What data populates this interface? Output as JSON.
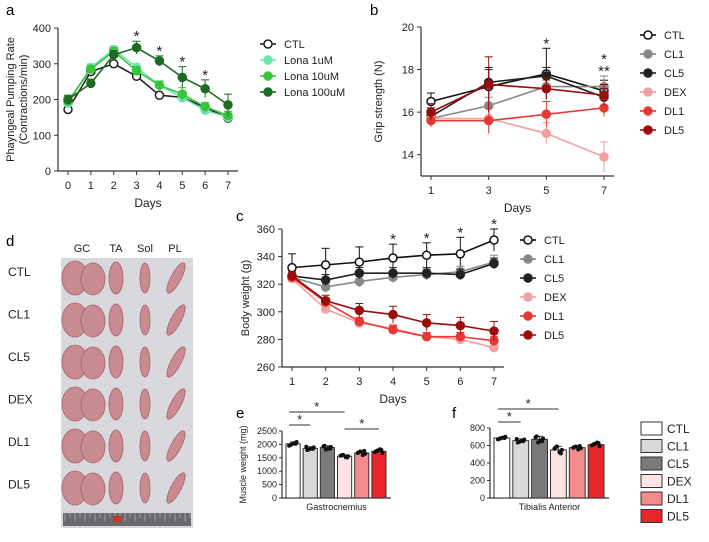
{
  "panel_labels": {
    "a": "a",
    "b": "b",
    "c": "c",
    "d": "d",
    "e": "e",
    "f": "f"
  },
  "colors": {
    "axis": "#333333",
    "photo_bg": "#d9d9dd",
    "muscle": "#c98b92",
    "muscle_dark": "#a8606c",
    "ruler": "#6a6a6e",
    "ruler_red": "#c0392b"
  },
  "chart_data": [
    {
      "id": "a",
      "type": "line",
      "ylabel": "Phayngeal Pumping Rate\n(Contractions/min)",
      "xlabel": "Days",
      "x": [
        0,
        1,
        2,
        3,
        4,
        5,
        6,
        7
      ],
      "ylim": [
        0,
        400
      ],
      "yticks": [
        0,
        100,
        200,
        300,
        400
      ],
      "legend": "right",
      "series": [
        {
          "name": "CTL",
          "color": "#222222",
          "fill": "#ffffff",
          "values": [
            172,
            278,
            300,
            265,
            212,
            206,
            178,
            148
          ],
          "err": [
            0,
            0,
            0,
            0,
            0,
            0,
            0,
            0
          ]
        },
        {
          "name": "Lona 1uM",
          "color": "#6ee5b0",
          "fill": "#6ee5b0",
          "values": [
            190,
            290,
            340,
            290,
            240,
            205,
            170,
            150
          ],
          "err": [
            12,
            10,
            10,
            10,
            10,
            10,
            10,
            10
          ]
        },
        {
          "name": "Lona 10uM",
          "color": "#39c43c",
          "fill": "#39c43c",
          "values": [
            195,
            285,
            335,
            280,
            240,
            215,
            180,
            155
          ],
          "err": [
            12,
            10,
            10,
            12,
            12,
            18,
            12,
            12
          ]
        },
        {
          "name": "Lona 100uM",
          "color": "#1e6b22",
          "fill": "#1e6b22",
          "values": [
            200,
            245,
            325,
            345,
            308,
            262,
            230,
            185
          ],
          "err": [
            12,
            12,
            12,
            18,
            14,
            30,
            25,
            30
          ]
        }
      ],
      "annotations": [
        {
          "x": 3,
          "text": "*"
        },
        {
          "x": 4,
          "text": "*"
        },
        {
          "x": 5,
          "text": "*"
        },
        {
          "x": 6,
          "text": "*"
        }
      ]
    },
    {
      "id": "b",
      "type": "line",
      "ylabel": "Grip strength (N)",
      "xlabel": "Days",
      "x": [
        1,
        3,
        5,
        7
      ],
      "ylim": [
        13,
        20
      ],
      "yticks": [
        14,
        16,
        18,
        20
      ],
      "legend": "right",
      "series": [
        {
          "name": "CTL",
          "color": "#111111",
          "fill": "#ffffff",
          "values": [
            16.5,
            17.2,
            17.8,
            17.0
          ],
          "err": [
            0.4,
            0.9,
            1.2,
            0.5
          ]
        },
        {
          "name": "CL1",
          "color": "#888888",
          "fill": "#888888",
          "values": [
            15.7,
            16.3,
            17.2,
            17.2
          ],
          "err": [
            0.3,
            0.4,
            0.3,
            0.5
          ]
        },
        {
          "name": "CL5",
          "color": "#222222",
          "fill": "#222222",
          "values": [
            15.8,
            17.4,
            17.7,
            16.7
          ],
          "err": [
            0.4,
            0.6,
            0.4,
            0.4
          ]
        },
        {
          "name": "DEX",
          "color": "#f5a0a0",
          "fill": "#f5a0a0",
          "values": [
            15.7,
            15.7,
            15.0,
            13.9
          ],
          "err": [
            0.4,
            0.5,
            0.5,
            0.7
          ]
        },
        {
          "name": "DL1",
          "color": "#e53935",
          "fill": "#e53935",
          "values": [
            15.6,
            15.6,
            15.9,
            16.2
          ],
          "err": [
            0.3,
            0.6,
            0.6,
            0.4
          ]
        },
        {
          "name": "DL5",
          "color": "#9b0d0d",
          "fill": "#9b0d0d",
          "values": [
            16.0,
            17.3,
            17.1,
            16.8
          ],
          "err": [
            0.4,
            1.3,
            0.5,
            0.5
          ]
        }
      ],
      "annotations": [
        {
          "x": 5,
          "text": "*",
          "line": 0
        },
        {
          "x": 7,
          "text": "*",
          "line": 0
        },
        {
          "x": 7,
          "text": "**",
          "line": 1
        }
      ]
    },
    {
      "id": "c",
      "type": "line",
      "ylabel": "Body weight (g)",
      "xlabel": "Days",
      "x": [
        1,
        2,
        3,
        4,
        5,
        6,
        7
      ],
      "ylim": [
        260,
        360
      ],
      "yticks": [
        260,
        280,
        300,
        320,
        340,
        360
      ],
      "legend": "right",
      "series": [
        {
          "name": "CTL",
          "color": "#111111",
          "fill": "#ffffff",
          "values": [
            332,
            334,
            336,
            339,
            341,
            342,
            352
          ],
          "err": [
            10,
            12,
            11,
            10,
            9,
            12,
            8
          ]
        },
        {
          "name": "CL1",
          "color": "#888888",
          "fill": "#888888",
          "values": [
            325,
            318,
            322,
            325,
            327,
            329,
            336
          ],
          "err": [
            3,
            4,
            4,
            4,
            4,
            4,
            5
          ]
        },
        {
          "name": "CL5",
          "color": "#222222",
          "fill": "#222222",
          "values": [
            326,
            323,
            328,
            328,
            328,
            327,
            335
          ],
          "err": [
            3,
            4,
            4,
            4,
            4,
            4,
            4
          ]
        },
        {
          "name": "DEX",
          "color": "#f5a0a0",
          "fill": "#f5a0a0",
          "values": [
            324,
            302,
            292,
            288,
            282,
            280,
            274
          ],
          "err": [
            3,
            3,
            3,
            3,
            3,
            3,
            3
          ]
        },
        {
          "name": "DL1",
          "color": "#e53935",
          "fill": "#e53935",
          "values": [
            325,
            307,
            293,
            287,
            282,
            282,
            279
          ],
          "err": [
            3,
            3,
            3,
            3,
            3,
            3,
            3
          ]
        },
        {
          "name": "DL5",
          "color": "#9b0d0d",
          "fill": "#9b0d0d",
          "values": [
            326,
            308,
            301,
            298,
            292,
            290,
            286
          ],
          "err": [
            3,
            4,
            5,
            6,
            6,
            6,
            7
          ]
        }
      ],
      "annotations": [
        {
          "x": 4,
          "text": "*"
        },
        {
          "x": 5,
          "text": "*"
        },
        {
          "x": 6,
          "text": "*"
        },
        {
          "x": 7,
          "text": "*"
        }
      ]
    },
    {
      "id": "e",
      "type": "bar",
      "ylabel": "Muscle weight (mg)",
      "xlabel": "Gastrocnemius",
      "categories": [
        "CTL",
        "CL1",
        "CL5",
        "DEX",
        "DL1",
        "DL5"
      ],
      "values": [
        2020,
        1850,
        1880,
        1560,
        1680,
        1740
      ],
      "err": [
        70,
        60,
        70,
        50,
        80,
        80
      ],
      "ylim": [
        0,
        2500
      ],
      "yticks": [
        0,
        500,
        1000,
        1500,
        2000,
        2500
      ],
      "colors": [
        "#ffffff",
        "#d9d9d9",
        "#7a7a7a",
        "#fde3e3",
        "#f28b8b",
        "#e8262a"
      ],
      "brackets": [
        {
          "from": 0,
          "to": 1,
          "level": 0,
          "text": "*"
        },
        {
          "from": 0,
          "to": 3,
          "level": 1,
          "text": "*"
        },
        {
          "from": 3,
          "to": 5,
          "level": 0,
          "text": "*"
        }
      ]
    },
    {
      "id": "f",
      "type": "bar",
      "ylabel": "",
      "xlabel": "Tibialis Anterior",
      "categories": [
        "CTL",
        "CL1",
        "CL5",
        "DEX",
        "DL1",
        "DL5"
      ],
      "values": [
        685,
        655,
        670,
        550,
        575,
        610
      ],
      "err": [
        15,
        20,
        35,
        40,
        20,
        25
      ],
      "ylim": [
        0,
        800
      ],
      "yticks": [
        0,
        200,
        400,
        600,
        800
      ],
      "colors": [
        "#ffffff",
        "#d9d9d9",
        "#7a7a7a",
        "#fde3e3",
        "#f28b8b",
        "#e8262a"
      ],
      "brackets": [
        {
          "from": 0,
          "to": 1,
          "level": 0,
          "text": "*"
        },
        {
          "from": 0,
          "to": 3,
          "level": 1,
          "text": "*"
        }
      ]
    }
  ],
  "bar_legend": [
    {
      "name": "CTL",
      "color": "#ffffff"
    },
    {
      "name": "CL1",
      "color": "#d9d9d9"
    },
    {
      "name": "CL5",
      "color": "#7a7a7a"
    },
    {
      "name": "DEX",
      "color": "#fde3e3"
    },
    {
      "name": "DL1",
      "color": "#f28b8b"
    },
    {
      "name": "DL5",
      "color": "#e8262a"
    }
  ],
  "photo": {
    "columns": [
      "GC",
      "TA",
      "Sol",
      "PL"
    ],
    "rows": [
      "CTL",
      "CL1",
      "CL5",
      "DEX",
      "DL1",
      "DL5"
    ]
  }
}
